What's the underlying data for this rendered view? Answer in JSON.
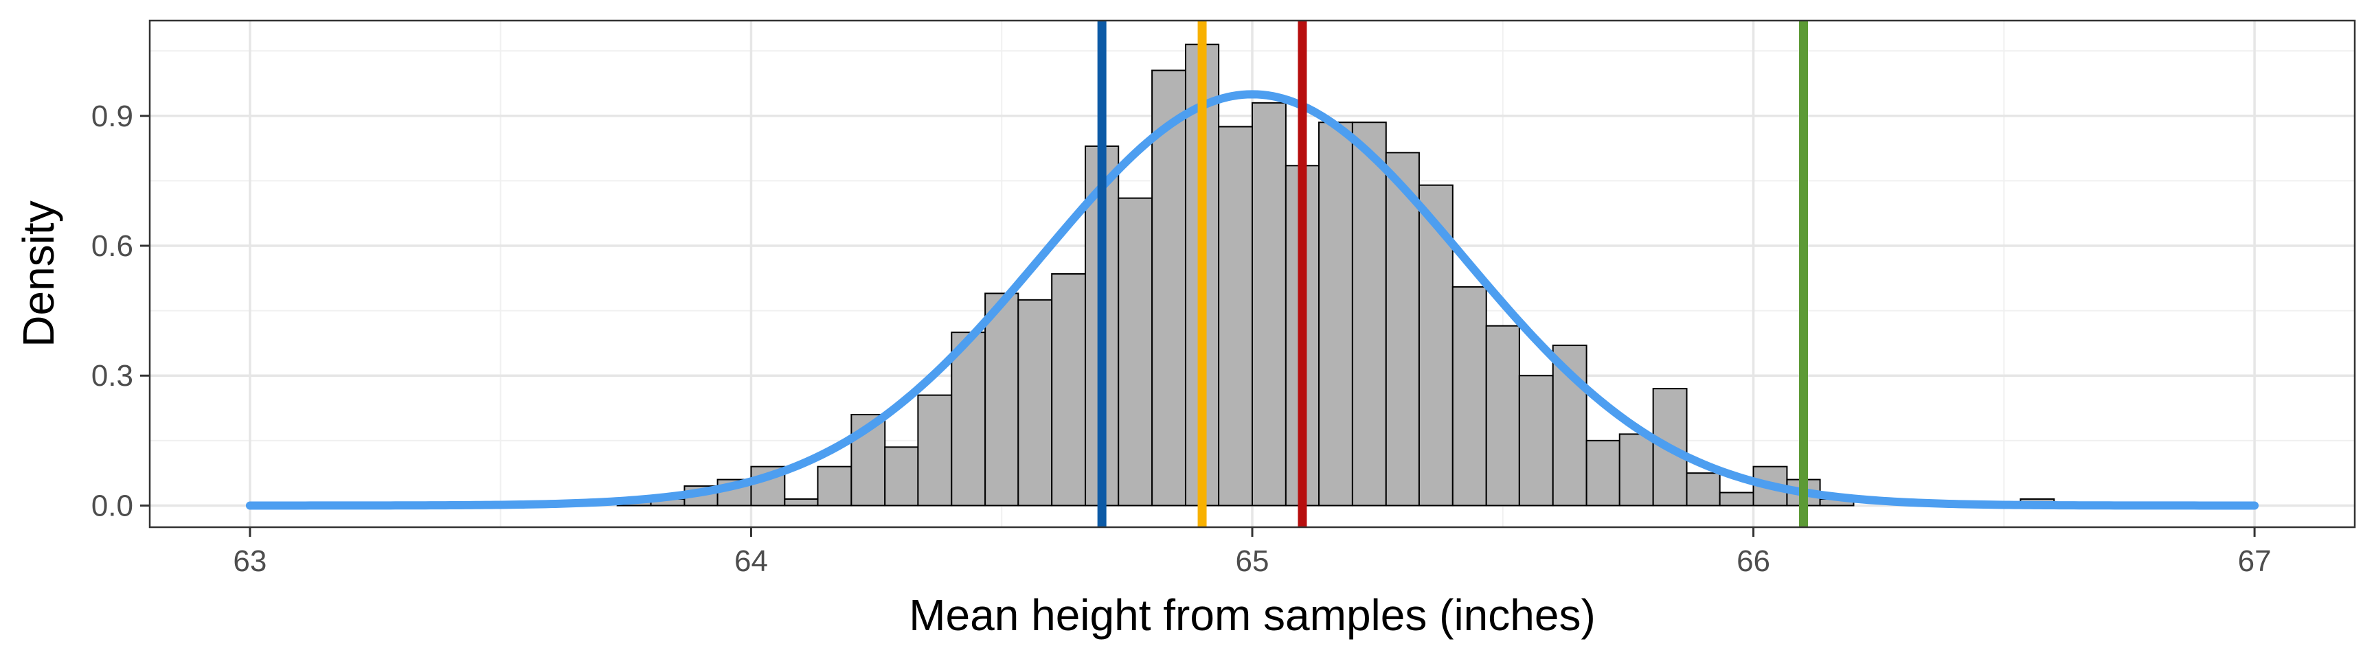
{
  "chart_data": {
    "type": "bar",
    "title": "",
    "xlabel": "Mean height from samples (inches)",
    "ylabel": "Density",
    "xlim": [
      62.8,
      67.2
    ],
    "ylim": [
      -0.05,
      1.12
    ],
    "x_ticks": [
      63,
      64,
      65,
      66,
      67
    ],
    "x_tick_labels": [
      "63",
      "64",
      "65",
      "66",
      "67"
    ],
    "y_ticks": [
      0.0,
      0.3,
      0.6,
      0.9
    ],
    "y_tick_labels": [
      "0.0",
      "0.3",
      "0.6",
      "0.9"
    ],
    "grid": true,
    "legend": "none",
    "histogram": {
      "bin_width": 0.0667,
      "fill_color": "#b3b3b3",
      "edge_color": "#000000",
      "bins": [
        {
          "x0": 63.733,
          "x1": 63.8,
          "density": 0.015
        },
        {
          "x0": 63.8,
          "x1": 63.867,
          "density": 0.015
        },
        {
          "x0": 63.867,
          "x1": 63.933,
          "density": 0.045
        },
        {
          "x0": 63.933,
          "x1": 64.0,
          "density": 0.06
        },
        {
          "x0": 64.0,
          "x1": 64.067,
          "density": 0.09
        },
        {
          "x0": 64.067,
          "x1": 64.133,
          "density": 0.015
        },
        {
          "x0": 64.133,
          "x1": 64.2,
          "density": 0.09
        },
        {
          "x0": 64.2,
          "x1": 64.267,
          "density": 0.21
        },
        {
          "x0": 64.267,
          "x1": 64.333,
          "density": 0.135
        },
        {
          "x0": 64.333,
          "x1": 64.4,
          "density": 0.255
        },
        {
          "x0": 64.4,
          "x1": 64.467,
          "density": 0.4
        },
        {
          "x0": 64.467,
          "x1": 64.533,
          "density": 0.49
        },
        {
          "x0": 64.533,
          "x1": 64.6,
          "density": 0.475
        },
        {
          "x0": 64.6,
          "x1": 64.667,
          "density": 0.535
        },
        {
          "x0": 64.667,
          "x1": 64.733,
          "density": 0.83
        },
        {
          "x0": 64.733,
          "x1": 64.8,
          "density": 0.71
        },
        {
          "x0": 64.8,
          "x1": 64.867,
          "density": 1.005
        },
        {
          "x0": 64.867,
          "x1": 64.933,
          "density": 1.065
        },
        {
          "x0": 64.933,
          "x1": 65.0,
          "density": 0.875
        },
        {
          "x0": 65.0,
          "x1": 65.067,
          "density": 0.93
        },
        {
          "x0": 65.067,
          "x1": 65.133,
          "density": 0.785
        },
        {
          "x0": 65.133,
          "x1": 65.2,
          "density": 0.885
        },
        {
          "x0": 65.2,
          "x1": 65.267,
          "density": 0.885
        },
        {
          "x0": 65.267,
          "x1": 65.333,
          "density": 0.815
        },
        {
          "x0": 65.333,
          "x1": 65.4,
          "density": 0.74
        },
        {
          "x0": 65.4,
          "x1": 65.467,
          "density": 0.505
        },
        {
          "x0": 65.467,
          "x1": 65.533,
          "density": 0.415
        },
        {
          "x0": 65.533,
          "x1": 65.6,
          "density": 0.3
        },
        {
          "x0": 65.6,
          "x1": 65.667,
          "density": 0.37
        },
        {
          "x0": 65.667,
          "x1": 65.733,
          "density": 0.15
        },
        {
          "x0": 65.733,
          "x1": 65.8,
          "density": 0.165
        },
        {
          "x0": 65.8,
          "x1": 65.867,
          "density": 0.27
        },
        {
          "x0": 65.867,
          "x1": 65.933,
          "density": 0.075
        },
        {
          "x0": 65.933,
          "x1": 66.0,
          "density": 0.03
        },
        {
          "x0": 66.0,
          "x1": 66.067,
          "density": 0.09
        },
        {
          "x0": 66.067,
          "x1": 66.133,
          "density": 0.06
        },
        {
          "x0": 66.133,
          "x1": 66.2,
          "density": 0.015
        },
        {
          "x0": 66.533,
          "x1": 66.6,
          "density": 0.015
        }
      ]
    },
    "density_curve": {
      "distribution": "normal",
      "mean": 65.0,
      "sd": 0.42,
      "x_range": [
        63,
        67
      ],
      "color": "#4d9ef0"
    },
    "vlines": [
      {
        "x": 64.7,
        "color": "#0c5aa6"
      },
      {
        "x": 64.9,
        "color": "#f8b100"
      },
      {
        "x": 65.1,
        "color": "#b70e0e"
      },
      {
        "x": 66.1,
        "color": "#5c9a35"
      }
    ]
  }
}
